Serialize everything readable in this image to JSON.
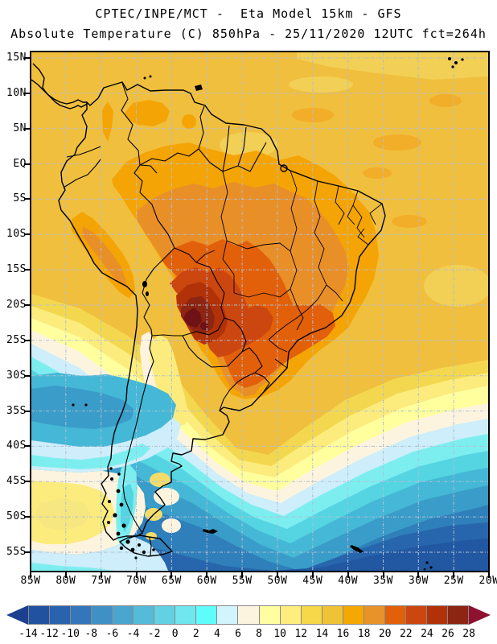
{
  "titles": {
    "line1": "CPTEC/INPE/MCT -  Eta Model 15km - GFS",
    "line2": "Absolute Temperature (C) 850hPa - 25/11/2020 12UTC fct=264h"
  },
  "map": {
    "lat_labels": [
      "15N",
      "10N",
      "5N",
      "EQ",
      "5S",
      "10S",
      "15S",
      "20S",
      "25S",
      "30S",
      "35S",
      "40S",
      "45S",
      "50S",
      "55S"
    ],
    "lon_labels": [
      "85W",
      "80W",
      "75W",
      "70W",
      "65W",
      "60W",
      "55W",
      "50W",
      "45W",
      "40W",
      "35W",
      "30W",
      "25W",
      "20W"
    ],
    "grid_color": "#b0bfd4",
    "coastline_color": "#000000",
    "background_band_color": "#f0bf3e"
  },
  "colorbar": {
    "tick_labels": [
      "-14",
      "-12",
      "-10",
      "-8",
      "-6",
      "-4",
      "-2",
      "0",
      "2",
      "4",
      "6",
      "8",
      "10",
      "12",
      "14",
      "16",
      "18",
      "20",
      "22",
      "24",
      "26",
      "28"
    ],
    "cell_colors": [
      "#2052a2",
      "#2a62ae",
      "#3376ba",
      "#3f90c5",
      "#4aa6cf",
      "#55bbd9",
      "#62d1e2",
      "#70e6ee",
      "#5ffcfc",
      "#d2f4fc",
      "#fdf4e0",
      "#ffffa2",
      "#ffee7e",
      "#f6d849",
      "#efc336",
      "#f5a802",
      "#e8922a",
      "#e2600a",
      "#cc4710",
      "#b23108",
      "#8c2511"
    ],
    "below_arrow_color": "#1c3f8f",
    "above_arrow_color": "#8e1130"
  },
  "chart_data": {
    "type": "heatmap",
    "title": "CPTEC/INPE/MCT - Eta Model 15km - GFS",
    "subtitle": "Absolute Temperature (C) 850hPa - 25/11/2020 12UTC fct=264h",
    "variable": "Absolute Temperature",
    "units": "C",
    "level": "850hPa",
    "valid_time": "25/11/2020 12UTC",
    "forecast": "fct=264h",
    "model": "Eta Model 15km",
    "boundary_conditions": "GFS",
    "region": "South America",
    "lon_range_deg": [
      -85,
      -20
    ],
    "lat_range_deg": [
      -57.5,
      16
    ],
    "grid_interval_deg": 5,
    "contour_levels_C": [
      -14,
      -12,
      -10,
      -8,
      -6,
      -4,
      -2,
      0,
      2,
      4,
      6,
      8,
      10,
      12,
      14,
      16,
      18,
      20,
      22,
      24,
      26,
      28
    ],
    "palette": [
      "#2052a2",
      "#2a62ae",
      "#3376ba",
      "#3f90c5",
      "#4aa6cf",
      "#55bbd9",
      "#62d1e2",
      "#70e6ee",
      "#5ffcfc",
      "#d2f4fc",
      "#fdf4e0",
      "#ffffa2",
      "#ffee7e",
      "#f6d849",
      "#efc336",
      "#f5a802",
      "#e8922a",
      "#e2600a",
      "#cc4710",
      "#b23108",
      "#8c2511"
    ],
    "features": [
      "Maximum above 28C centered near Bolivia/Paraguay border (~20S, 62W)",
      "Warm core 20-28C over Gran Chaco, interior Brazil and SE Brazil",
      "Tropics and tropical Atlantic mostly 14-18C",
      "Cool tongue 8-12C along Andes into NW Argentina",
      "Cold pool -2 to -8C over South Atlantic south of 45S, coldest in SE corner",
      "Cool 0-4C band over SE Pacific near 30-40S",
      "Mild patch 8-12C in SE Pacific near 48S 80W",
      "Patagonia 4-12C with cyan 0-4C along southern Andes"
    ],
    "legend_position": "bottom"
  }
}
